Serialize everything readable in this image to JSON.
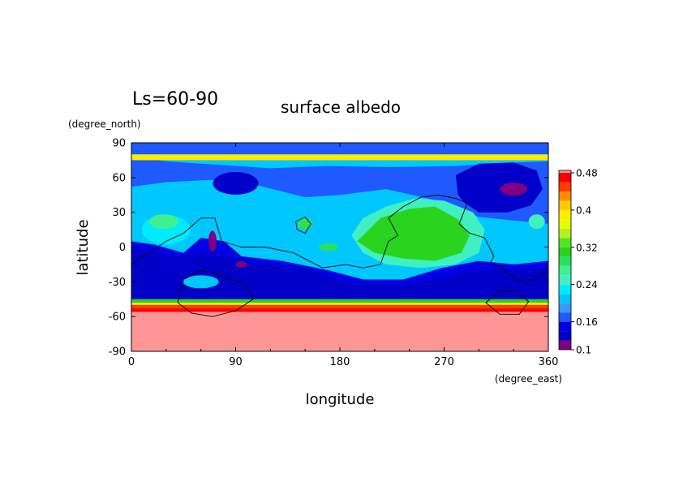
{
  "chart_data": {
    "type": "heatmap",
    "title": "surface albedo",
    "season_label": "Ls=60-90",
    "xlabel": "longitude",
    "ylabel": "latitude",
    "x_units": "(degree_east)",
    "y_units": "(degree_north)",
    "xlim": [
      0,
      360
    ],
    "ylim": [
      -90,
      90
    ],
    "x_ticks": [
      "0",
      "90",
      "180",
      "270",
      "360"
    ],
    "y_ticks": [
      "90",
      "60",
      "30",
      "0",
      "-30",
      "-60",
      "-90"
    ],
    "colorbar": {
      "levels": [
        0.1,
        0.12,
        0.14,
        0.16,
        0.18,
        0.2,
        0.22,
        0.24,
        0.26,
        0.28,
        0.3,
        0.32,
        0.34,
        0.36,
        0.38,
        0.4,
        0.42,
        0.44,
        0.46,
        0.48
      ],
      "colors": [
        "#800080",
        "#0000c8",
        "#0000e6",
        "#1e5aff",
        "#3c96ff",
        "#00c8ff",
        "#00ebff",
        "#40f0c0",
        "#3ef090",
        "#28e060",
        "#2ad41e",
        "#4fe61e",
        "#b4f01e",
        "#e6ff00",
        "#ffeb00",
        "#ffc800",
        "#ff8c00",
        "#ff3c00",
        "#ff0000",
        "#ff9696"
      ],
      "tick_labels": [
        "0.1",
        "0.16",
        "0.24",
        "0.32",
        "0.4",
        "0.48"
      ]
    },
    "latitude_bands": [
      {
        "lat": [
          80,
          90
        ],
        "albedo": 0.16
      },
      {
        "lat": [
          75,
          80
        ],
        "albedo": 0.39
      },
      {
        "lat": [
          -48,
          -45
        ],
        "albedo": 0.3
      },
      {
        "lat": [
          -50,
          -48
        ],
        "albedo": 0.39
      },
      {
        "lat": [
          -53,
          -50
        ],
        "albedo": 0.44
      },
      {
        "lat": [
          -56,
          -53
        ],
        "albedo": 0.47
      },
      {
        "lat": [
          -90,
          -56
        ],
        "albedo": 0.48
      }
    ],
    "regions": [
      {
        "name": "north-dark-band",
        "lon_range": [
          0,
          360
        ],
        "albedo": 0.17
      },
      {
        "name": "nw-low-albedo",
        "lon": 90,
        "lat": 55,
        "albedo": 0.13
      },
      {
        "name": "ne-low-albedo",
        "lon": 330,
        "lat": 50,
        "albedo": 0.13
      },
      {
        "name": "ne-minimum",
        "lon": 330,
        "lat": 50,
        "albedo": 0.1
      },
      {
        "name": "tharsis-bright",
        "lon": 250,
        "lat": 10,
        "albedo": 0.3
      },
      {
        "name": "small-bright-patch",
        "lon": 150,
        "lat": 20,
        "albedo": 0.28
      },
      {
        "name": "south-dark-band",
        "lon_range": [
          0,
          360
        ],
        "albedo": 0.13
      },
      {
        "name": "dark-minimum",
        "lon": 70,
        "lat": 5,
        "albedo": 0.1
      },
      {
        "name": "dark-minimum-2",
        "lon": 95,
        "lat": -15,
        "albedo": 0.1
      }
    ]
  }
}
